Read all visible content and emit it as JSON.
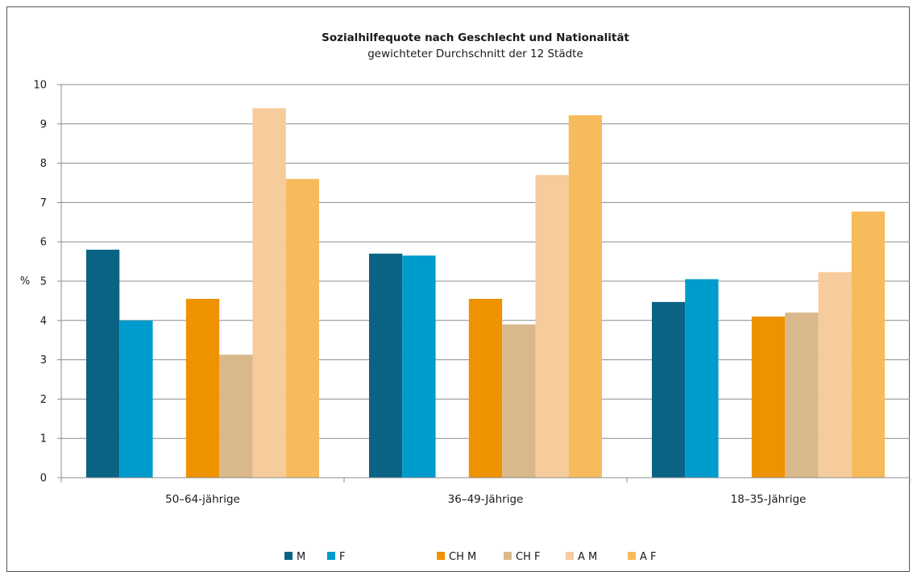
{
  "chart_data": {
    "type": "bar",
    "title": "Sozialhilfequote nach Geschlecht und Nationalität",
    "subtitle": "gewichteter Durchschnitt der 12 Städte",
    "ylabel": "%",
    "xlabel": "",
    "ylim": [
      0,
      10
    ],
    "yticks": [
      0,
      1,
      2,
      3,
      4,
      5,
      6,
      7,
      8,
      9,
      10
    ],
    "grid": true,
    "legend_position": "bottom",
    "categories": [
      "50–64-jährige",
      "36–49-Jährige",
      "18–35-Jährige"
    ],
    "series": [
      {
        "name": "M",
        "color": "#0b6384",
        "values": [
          5.8,
          5.7,
          4.47
        ]
      },
      {
        "name": "F",
        "color": "#009bcd",
        "values": [
          4.0,
          5.65,
          5.05
        ]
      },
      {
        "name": "",
        "color": "",
        "values": [
          null,
          null,
          null
        ]
      },
      {
        "name": "CH M",
        "color": "#ee9200",
        "values": [
          4.55,
          4.55,
          4.1
        ]
      },
      {
        "name": "CH F",
        "color": "#d9b88b",
        "values": [
          3.13,
          3.9,
          4.2
        ]
      },
      {
        "name": "A M",
        "color": "#f6cc9c",
        "values": [
          9.4,
          7.7,
          5.23
        ]
      },
      {
        "name": "A F",
        "color": "#f7bb5b",
        "values": [
          7.6,
          9.22,
          6.77
        ]
      }
    ]
  }
}
